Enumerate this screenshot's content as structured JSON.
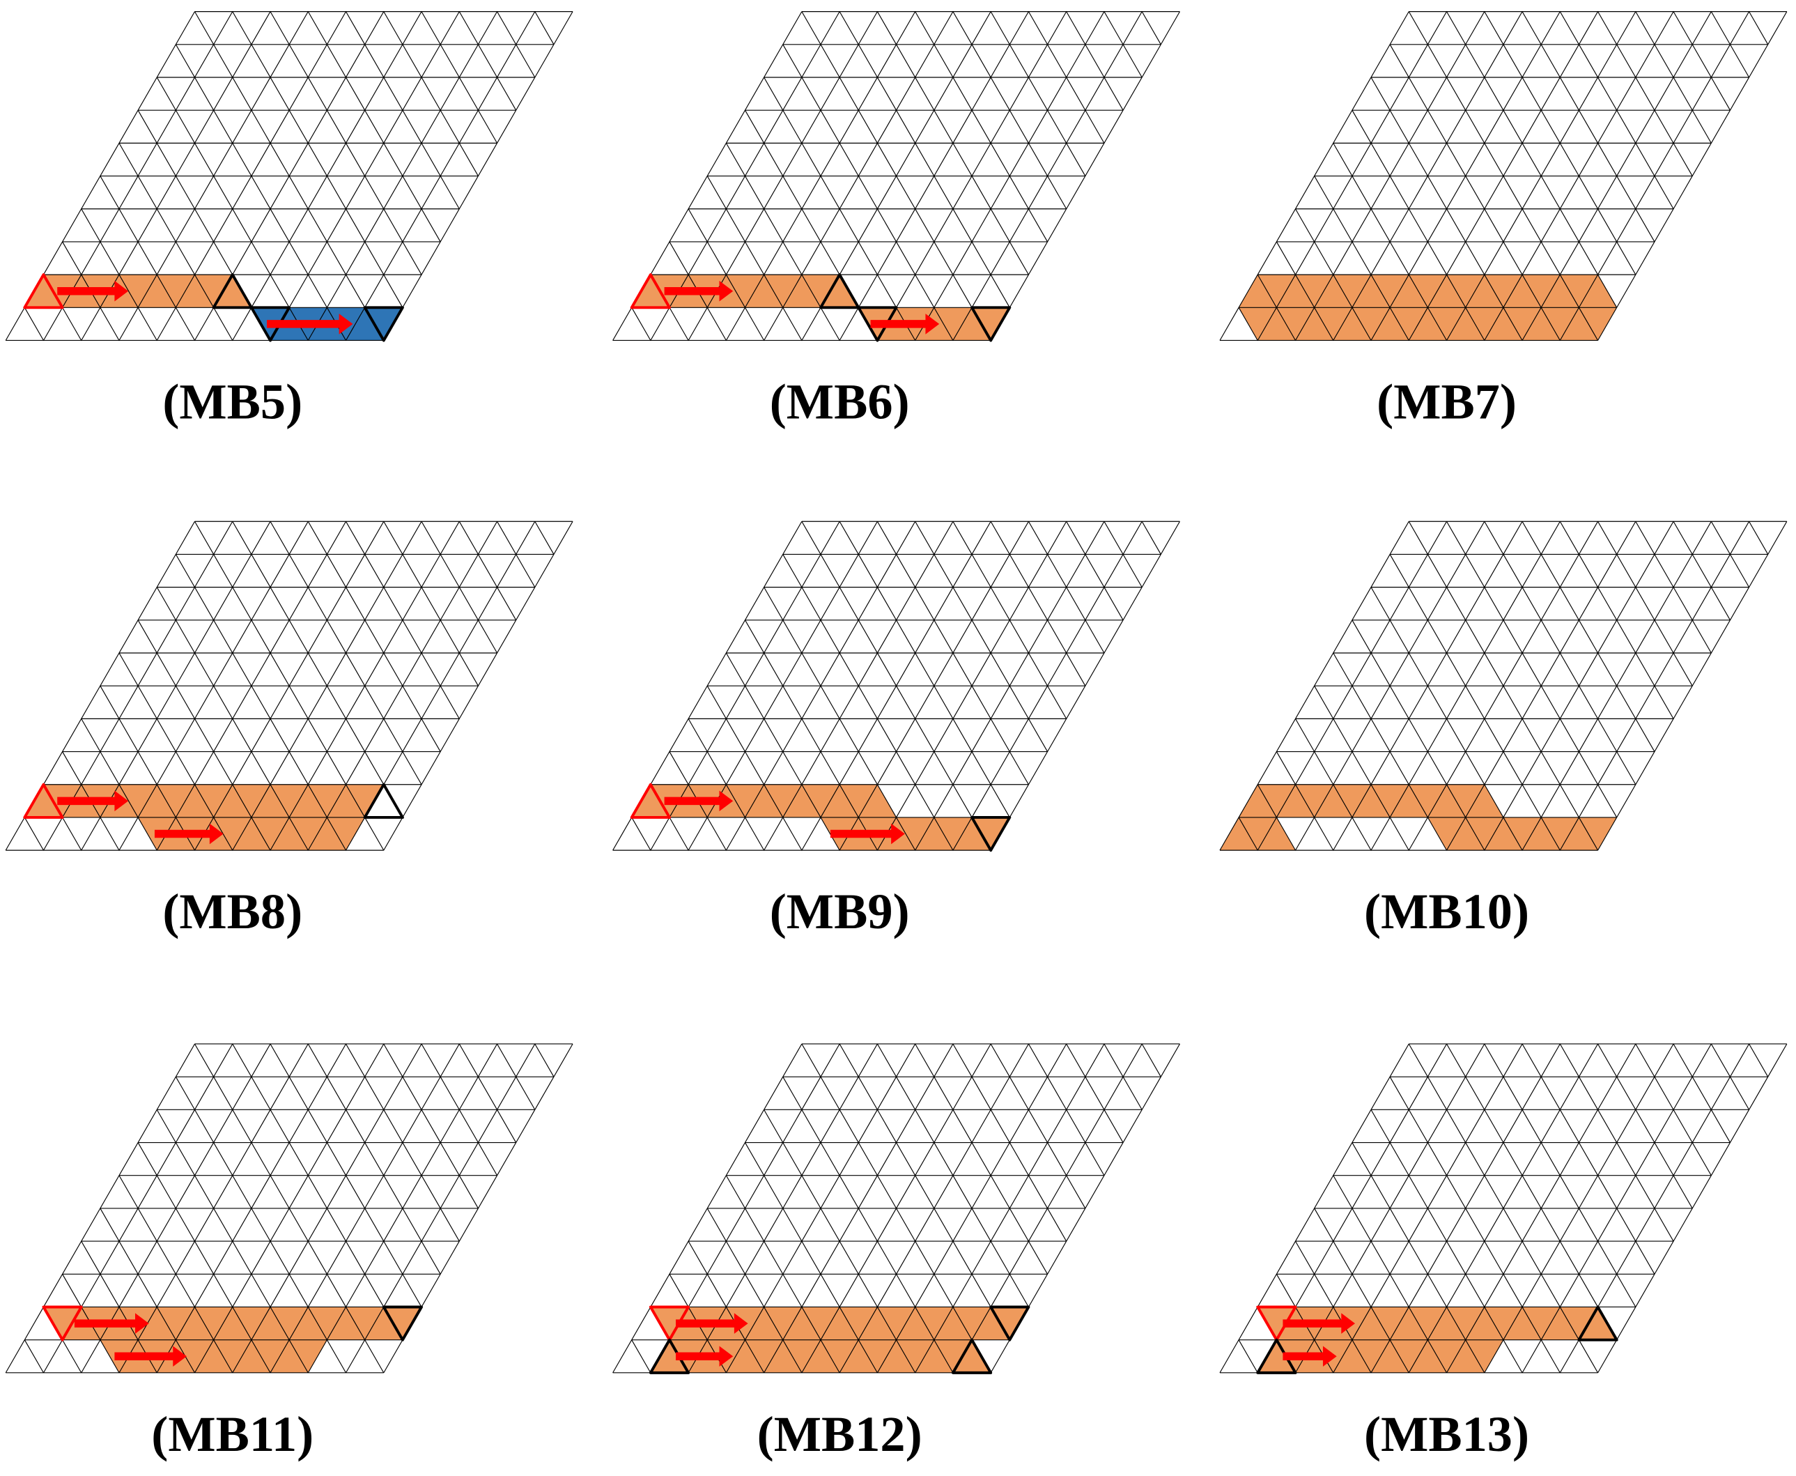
{
  "panels": [
    {
      "label": "(MB5)"
    },
    {
      "label": "(MB6)"
    },
    {
      "label": "(MB7)"
    },
    {
      "label": "(MB8)"
    },
    {
      "label": "(MB9)"
    },
    {
      "label": "(MB10)"
    },
    {
      "label": "(MB11)"
    },
    {
      "label": "(MB12)"
    },
    {
      "label": "(MB13)"
    }
  ]
}
